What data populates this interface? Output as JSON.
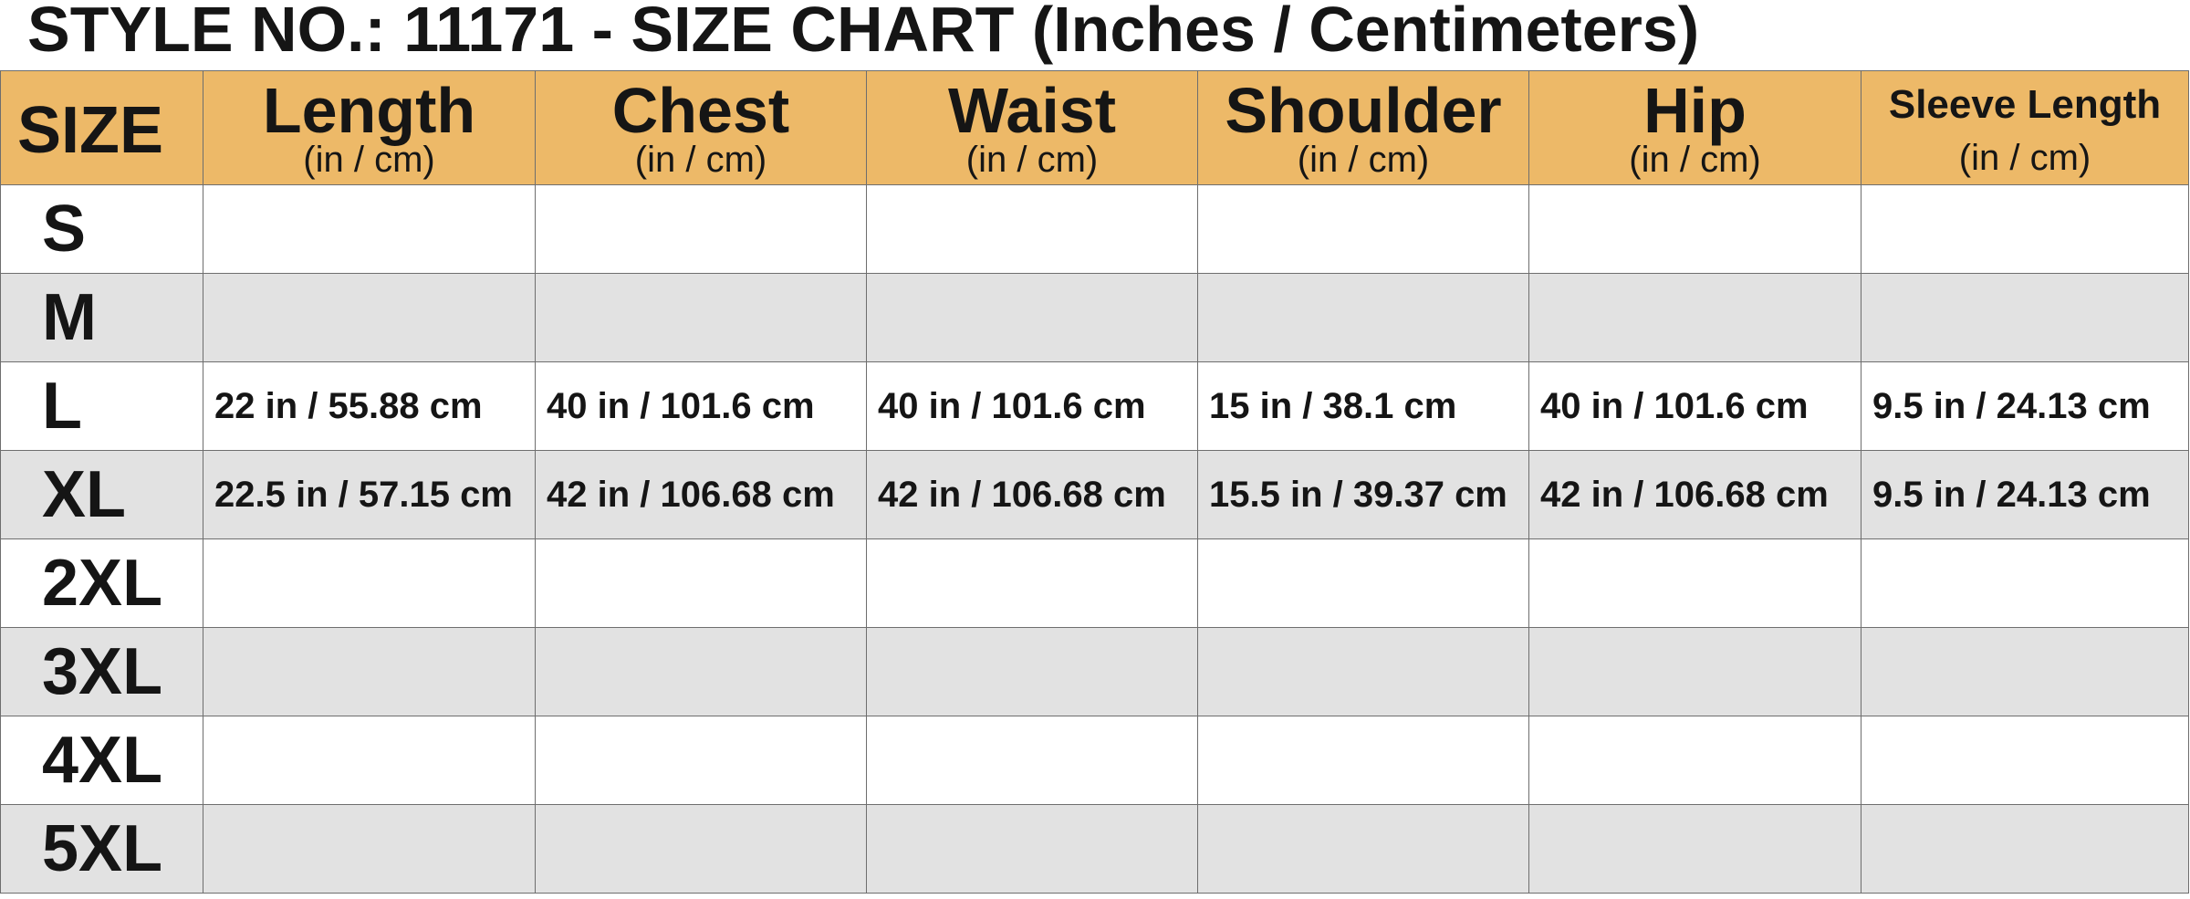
{
  "title": "STYLE NO.: 11171 - SIZE CHART (Inches / Centimeters)",
  "colors": {
    "header_bg": "#edb968",
    "alt_row_bg": "#e2e2e2",
    "text": "#151515"
  },
  "table": {
    "size_header": "SIZE",
    "columns": [
      {
        "label": "Length",
        "unit": "(in / cm)"
      },
      {
        "label": "Chest",
        "unit": "(in / cm)"
      },
      {
        "label": "Waist",
        "unit": "(in / cm)"
      },
      {
        "label": "Shoulder",
        "unit": "(in / cm)"
      },
      {
        "label": "Hip",
        "unit": "(in / cm)"
      },
      {
        "label": "Sleeve Length",
        "unit": "(in / cm)"
      }
    ],
    "rows": [
      {
        "size": "S",
        "values": [
          "",
          "",
          "",
          "",
          "",
          ""
        ]
      },
      {
        "size": "M",
        "values": [
          "",
          "",
          "",
          "",
          "",
          ""
        ]
      },
      {
        "size": "L",
        "values": [
          "22 in / 55.88 cm",
          "40 in / 101.6 cm",
          "40 in / 101.6 cm",
          "15 in / 38.1 cm",
          "40 in / 101.6 cm",
          "9.5 in / 24.13 cm"
        ]
      },
      {
        "size": "XL",
        "values": [
          "22.5 in / 57.15 cm",
          "42 in / 106.68 cm",
          "42 in / 106.68 cm",
          "15.5 in / 39.37 cm",
          "42 in / 106.68 cm",
          "9.5 in / 24.13 cm"
        ]
      },
      {
        "size": "2XL",
        "values": [
          "",
          "",
          "",
          "",
          "",
          ""
        ]
      },
      {
        "size": "3XL",
        "values": [
          "",
          "",
          "",
          "",
          "",
          ""
        ]
      },
      {
        "size": "4XL",
        "values": [
          "",
          "",
          "",
          "",
          "",
          ""
        ]
      },
      {
        "size": "5XL",
        "values": [
          "",
          "",
          "",
          "",
          "",
          ""
        ]
      }
    ]
  }
}
